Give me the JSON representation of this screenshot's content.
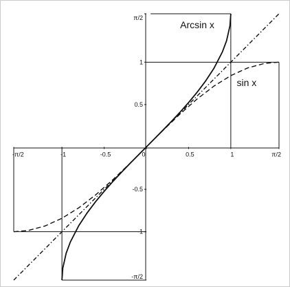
{
  "chart_data": {
    "type": "line",
    "title": "",
    "xlabel": "",
    "ylabel": "",
    "xlim": [
      -1.5708,
      1.5708
    ],
    "ylim": [
      -1.5708,
      1.5708
    ],
    "grid": false,
    "x_ticks": [
      {
        "value": -1.5708,
        "label": "-π/2"
      },
      {
        "value": -1,
        "label": "-1"
      },
      {
        "value": -0.5,
        "label": "-0.5"
      },
      {
        "value": 0,
        "label": "0"
      },
      {
        "value": 0.5,
        "label": "0.5"
      },
      {
        "value": 1,
        "label": "1"
      },
      {
        "value": 1.5708,
        "label": "π/2"
      }
    ],
    "y_ticks": [
      {
        "value": 1.5708,
        "label": "π/2"
      },
      {
        "value": 1,
        "label": "1"
      },
      {
        "value": 0.5,
        "label": "0.5"
      },
      {
        "value": -0.5,
        "label": "-0.5"
      },
      {
        "value": -1,
        "label": "-1"
      },
      {
        "value": -1.5708,
        "label": "-π/2"
      }
    ],
    "series": [
      {
        "name": "Arcsin x",
        "style": "solid",
        "color": "#111111",
        "x": [
          -1,
          -0.99,
          -0.95,
          -0.9,
          -0.8,
          -0.7,
          -0.6,
          -0.5,
          -0.4,
          -0.3,
          -0.2,
          -0.1,
          0,
          0.1,
          0.2,
          0.3,
          0.4,
          0.5,
          0.6,
          0.7,
          0.8,
          0.9,
          0.95,
          0.99,
          1
        ],
        "y": [
          -1.5708,
          -1.4293,
          -1.2532,
          -1.1198,
          -0.9273,
          -0.7754,
          -0.6435,
          -0.5236,
          -0.4115,
          -0.3047,
          -0.2014,
          -0.1002,
          0,
          0.1002,
          0.2014,
          0.3047,
          0.4115,
          0.5236,
          0.6435,
          0.7754,
          0.9273,
          1.1198,
          1.2532,
          1.4293,
          1.5708
        ],
        "label_pos": {
          "x": 0.4,
          "y": 1.4
        }
      },
      {
        "name": "sin x",
        "style": "dashed",
        "color": "#111111",
        "x": [
          -1.5708,
          -1.4,
          -1.2,
          -1.0,
          -0.8,
          -0.6,
          -0.4,
          -0.2,
          0,
          0.2,
          0.4,
          0.6,
          0.8,
          1.0,
          1.2,
          1.4,
          1.5708
        ],
        "y": [
          -1,
          -0.9854,
          -0.932,
          -0.8415,
          -0.7174,
          -0.5646,
          -0.3894,
          -0.1987,
          0,
          0.1987,
          0.3894,
          0.5646,
          0.7174,
          0.8415,
          0.932,
          0.9854,
          1
        ],
        "label_pos": {
          "x": 1.07,
          "y": 0.72
        }
      },
      {
        "name": "",
        "style": "dashdot",
        "color": "#111111",
        "x": [
          -1.5708,
          1.5708
        ],
        "y": [
          -1.5708,
          1.5708
        ]
      }
    ],
    "reference_lines": [
      {
        "x1": 1,
        "y1": 0,
        "x2": 1,
        "y2": 1.5708
      },
      {
        "x1": 0.05,
        "y1": 1.5708,
        "x2": 1,
        "y2": 1.5708
      },
      {
        "x1": 0,
        "y1": 1,
        "x2": 1.5708,
        "y2": 1
      },
      {
        "x1": 1.5708,
        "y1": 0,
        "x2": 1.5708,
        "y2": 1
      },
      {
        "x1": -1,
        "y1": 0,
        "x2": -1,
        "y2": -1.5708
      },
      {
        "x1": -1,
        "y1": -1.5708,
        "x2": 0,
        "y2": -1.5708
      },
      {
        "x1": -1.5708,
        "y1": -1,
        "x2": 0,
        "y2": -1
      },
      {
        "x1": -1.5708,
        "y1": 0,
        "x2": -1.5708,
        "y2": -1
      }
    ]
  }
}
